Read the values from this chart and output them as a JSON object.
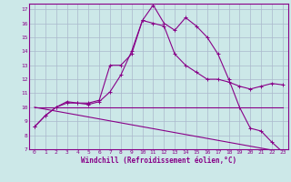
{
  "xlabel": "Windchill (Refroidissement éolien,°C)",
  "bg_color": "#cce8e8",
  "line_color": "#880088",
  "grid_color": "#aab8cc",
  "xlim": [
    -0.5,
    23.5
  ],
  "ylim": [
    7,
    17.4
  ],
  "xticks": [
    0,
    1,
    2,
    3,
    4,
    5,
    6,
    7,
    8,
    9,
    10,
    11,
    12,
    13,
    14,
    15,
    16,
    17,
    18,
    19,
    20,
    21,
    22,
    23
  ],
  "yticks": [
    7,
    8,
    9,
    10,
    11,
    12,
    13,
    14,
    15,
    16,
    17
  ],
  "series": [
    {
      "x": [
        0,
        1,
        2,
        3,
        4,
        5,
        6,
        7,
        8,
        9,
        10,
        11,
        12,
        13,
        14,
        15,
        16,
        17,
        18,
        19,
        20,
        21,
        22,
        23
      ],
      "y": [
        8.6,
        9.4,
        10.0,
        10.4,
        10.3,
        10.3,
        10.5,
        13.0,
        13.0,
        13.8,
        16.2,
        17.3,
        16.0,
        15.5,
        16.4,
        15.8,
        15.0,
        13.8,
        12.0,
        10.0,
        8.5,
        8.3,
        7.5,
        6.8
      ],
      "marker": "+"
    },
    {
      "x": [
        0,
        1,
        2,
        3,
        4,
        5,
        6,
        7,
        8,
        9,
        10,
        11,
        12,
        13,
        14,
        15,
        16,
        17,
        18,
        19,
        20,
        21,
        22,
        23
      ],
      "y": [
        8.6,
        9.4,
        10.0,
        10.3,
        10.3,
        10.2,
        10.4,
        11.1,
        12.3,
        14.0,
        16.2,
        16.0,
        15.8,
        13.8,
        13.0,
        12.5,
        12.0,
        12.0,
        11.8,
        11.5,
        11.3,
        11.5,
        11.7,
        11.6
      ],
      "marker": "+"
    },
    {
      "x": [
        0,
        23
      ],
      "y": [
        10.0,
        10.0
      ],
      "marker": null
    },
    {
      "x": [
        0,
        23
      ],
      "y": [
        10.0,
        6.8
      ],
      "marker": null
    }
  ]
}
